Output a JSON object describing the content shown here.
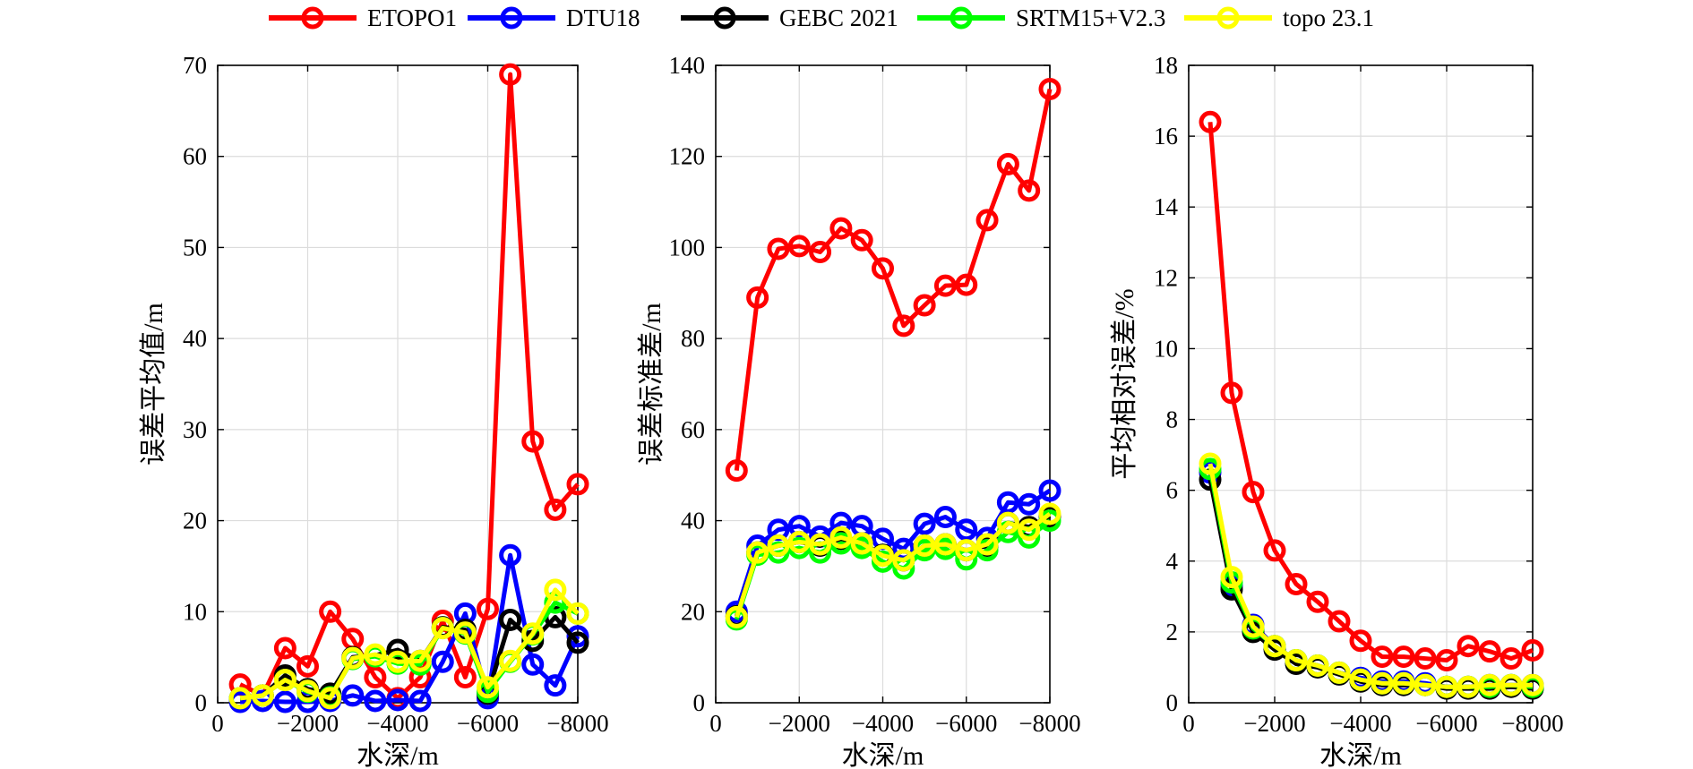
{
  "chart_data": {
    "type": "line",
    "legend": {
      "placement": "top-center",
      "entries": [
        {
          "name": "ETOPO1",
          "color": "#ff0000"
        },
        {
          "name": "DTU18",
          "color": "#0000ff"
        },
        {
          "name": "GEBC 2021",
          "color": "#000000"
        },
        {
          "name": "SRTM15+V2.3",
          "color": "#00ff00"
        },
        {
          "name": "topo 23.1",
          "color": "#ffff00"
        }
      ]
    },
    "panels": [
      {
        "xlabel": "水深/m",
        "ylabel": "误差平均值/m",
        "xlim": [
          0,
          -8000
        ],
        "ylim": [
          0,
          70
        ],
        "xticks": [
          0,
          -2000,
          -4000,
          -6000,
          -8000
        ],
        "xtick_labels": [
          "0",
          "−2000",
          "−4000",
          "−6000",
          "−8000"
        ],
        "yticks": [
          0,
          10,
          20,
          30,
          40,
          50,
          60,
          70
        ],
        "ytick_labels": [
          "0",
          "10",
          "20",
          "30",
          "40",
          "50",
          "60",
          "70"
        ],
        "grid": true,
        "x": [
          -500,
          -1000,
          -1500,
          -2000,
          -2500,
          -3000,
          -3500,
          -4000,
          -4500,
          -5000,
          -5500,
          -6000,
          -6500,
          -7000,
          -7500,
          -8000
        ],
        "series": [
          {
            "name": "ETOPO1",
            "color": "#ff0000",
            "values": [
              2.0,
              0.8,
              6.0,
              4.0,
              10.0,
              7.0,
              2.8,
              0.5,
              2.8,
              9.0,
              2.8,
              10.3,
              69.0,
              28.7,
              21.2,
              24.0
            ]
          },
          {
            "name": "DTU18",
            "color": "#0000ff",
            "values": [
              0.1,
              0.2,
              0.1,
              0.1,
              0.2,
              0.8,
              0.2,
              0.3,
              0.2,
              4.5,
              9.8,
              0.5,
              16.2,
              4.2,
              1.9,
              7.3
            ]
          },
          {
            "name": "GEBC 2021",
            "color": "#000000",
            "values": [
              0.5,
              0.8,
              3.0,
              1.5,
              1.0,
              5.0,
              5.2,
              5.8,
              4.6,
              8.3,
              8.0,
              1.0,
              9.1,
              6.8,
              9.4,
              6.6
            ]
          },
          {
            "name": "SRTM15+V2.3",
            "color": "#00ff00",
            "values": [
              0.5,
              0.8,
              2.5,
              1.2,
              0.6,
              4.8,
              5.1,
              4.3,
              4.2,
              8.2,
              7.6,
              1.2,
              4.5,
              7.5,
              11.0,
              9.8
            ]
          },
          {
            "name": "topo 23.1",
            "color": "#ffff00",
            "values": [
              0.5,
              0.8,
              2.5,
              1.3,
              0.5,
              4.9,
              5.3,
              4.5,
              4.6,
              8.2,
              7.7,
              1.7,
              4.6,
              7.6,
              12.4,
              9.8
            ]
          }
        ]
      },
      {
        "xlabel": "水深/m",
        "ylabel": "误差标准差/m",
        "xlim": [
          0,
          -8000
        ],
        "ylim": [
          0,
          140
        ],
        "xticks": [
          0,
          -2000,
          -4000,
          -6000,
          -8000
        ],
        "xtick_labels": [
          "0",
          "−2000",
          "−4000",
          "−6000",
          "−8000"
        ],
        "yticks": [
          0,
          20,
          40,
          60,
          80,
          100,
          120,
          140
        ],
        "ytick_labels": [
          "0",
          "20",
          "40",
          "60",
          "80",
          "100",
          "120",
          "140"
        ],
        "grid": true,
        "x": [
          -500,
          -1000,
          -1500,
          -2000,
          -2500,
          -3000,
          -3500,
          -4000,
          -4500,
          -5000,
          -5500,
          -6000,
          -6500,
          -7000,
          -7500,
          -8000
        ],
        "series": [
          {
            "name": "ETOPO1",
            "color": "#ff0000",
            "values": [
              51.0,
              89.0,
              99.7,
              100.3,
              99.0,
              104.2,
              101.6,
              95.4,
              82.8,
              87.3,
              91.6,
              91.8,
              106.0,
              118.3,
              112.5,
              134.8
            ]
          },
          {
            "name": "DTU18",
            "color": "#0000ff",
            "values": [
              20.0,
              34.5,
              38.0,
              38.8,
              36.5,
              39.5,
              38.8,
              36.0,
              33.8,
              39.3,
              40.8,
              38.0,
              36.2,
              44.0,
              43.6,
              46.6
            ]
          },
          {
            "name": "GEBC 2021",
            "color": "#000000",
            "values": [
              19.0,
              33.0,
              34.5,
              35.3,
              34.5,
              36.0,
              35.0,
              32.5,
              31.3,
              34.5,
              34.8,
              33.5,
              34.5,
              39.5,
              38.6,
              41.0
            ]
          },
          {
            "name": "SRTM15+V2.3",
            "color": "#00ff00",
            "values": [
              18.3,
              32.5,
              33.0,
              34.0,
              33.0,
              35.0,
              34.0,
              31.0,
              29.5,
              33.5,
              33.8,
              31.5,
              33.5,
              37.5,
              36.3,
              40.0
            ]
          },
          {
            "name": "topo 23.1",
            "color": "#ffff00",
            "values": [
              18.8,
              33.0,
              34.5,
              35.3,
              34.8,
              36.3,
              35.0,
              32.3,
              31.3,
              34.5,
              34.8,
              33.5,
              34.8,
              39.5,
              38.0,
              41.5
            ]
          }
        ]
      },
      {
        "xlabel": "水深/m",
        "ylabel": "平均相对误差/%",
        "xlim": [
          0,
          -8000
        ],
        "ylim": [
          0,
          18
        ],
        "xticks": [
          0,
          -2000,
          -4000,
          -6000,
          -8000
        ],
        "xtick_labels": [
          "0",
          "−2000",
          "−4000",
          "−6000",
          "−8000"
        ],
        "yticks": [
          0,
          2,
          4,
          6,
          8,
          10,
          12,
          14,
          16,
          18
        ],
        "ytick_labels": [
          "0",
          "2",
          "4",
          "6",
          "8",
          "10",
          "12",
          "14",
          "16",
          "18"
        ],
        "grid": true,
        "x": [
          -500,
          -1000,
          -1500,
          -2000,
          -2500,
          -3000,
          -3500,
          -4000,
          -4500,
          -5000,
          -5500,
          -6000,
          -6500,
          -7000,
          -7500,
          -8000
        ],
        "series": [
          {
            "name": "ETOPO1",
            "color": "#ff0000",
            "values": [
              16.4,
              8.75,
              5.95,
              4.3,
              3.35,
              2.85,
              2.3,
              1.75,
              1.3,
              1.3,
              1.25,
              1.2,
              1.6,
              1.45,
              1.25,
              1.48
            ]
          },
          {
            "name": "DTU18",
            "color": "#0000ff",
            "values": [
              6.5,
              3.3,
              2.2,
              1.6,
              1.2,
              1.05,
              0.85,
              0.7,
              0.6,
              0.6,
              0.55,
              0.45,
              0.45,
              0.5,
              0.5,
              0.5
            ]
          },
          {
            "name": "GEBC 2021",
            "color": "#000000",
            "values": [
              6.3,
              3.2,
              2.0,
              1.5,
              1.1,
              1.0,
              0.8,
              0.6,
              0.5,
              0.5,
              0.5,
              0.4,
              0.4,
              0.4,
              0.45,
              0.4
            ]
          },
          {
            "name": "SRTM15+V2.3",
            "color": "#00ff00",
            "values": [
              6.6,
              3.4,
              2.1,
              1.6,
              1.2,
              1.05,
              0.85,
              0.65,
              0.55,
              0.55,
              0.5,
              0.45,
              0.45,
              0.45,
              0.5,
              0.45
            ]
          },
          {
            "name": "topo 23.1",
            "color": "#ffff00",
            "values": [
              6.75,
              3.55,
              2.15,
              1.6,
              1.2,
              1.05,
              0.85,
              0.65,
              0.55,
              0.55,
              0.5,
              0.45,
              0.45,
              0.5,
              0.5,
              0.5
            ]
          }
        ]
      }
    ]
  }
}
